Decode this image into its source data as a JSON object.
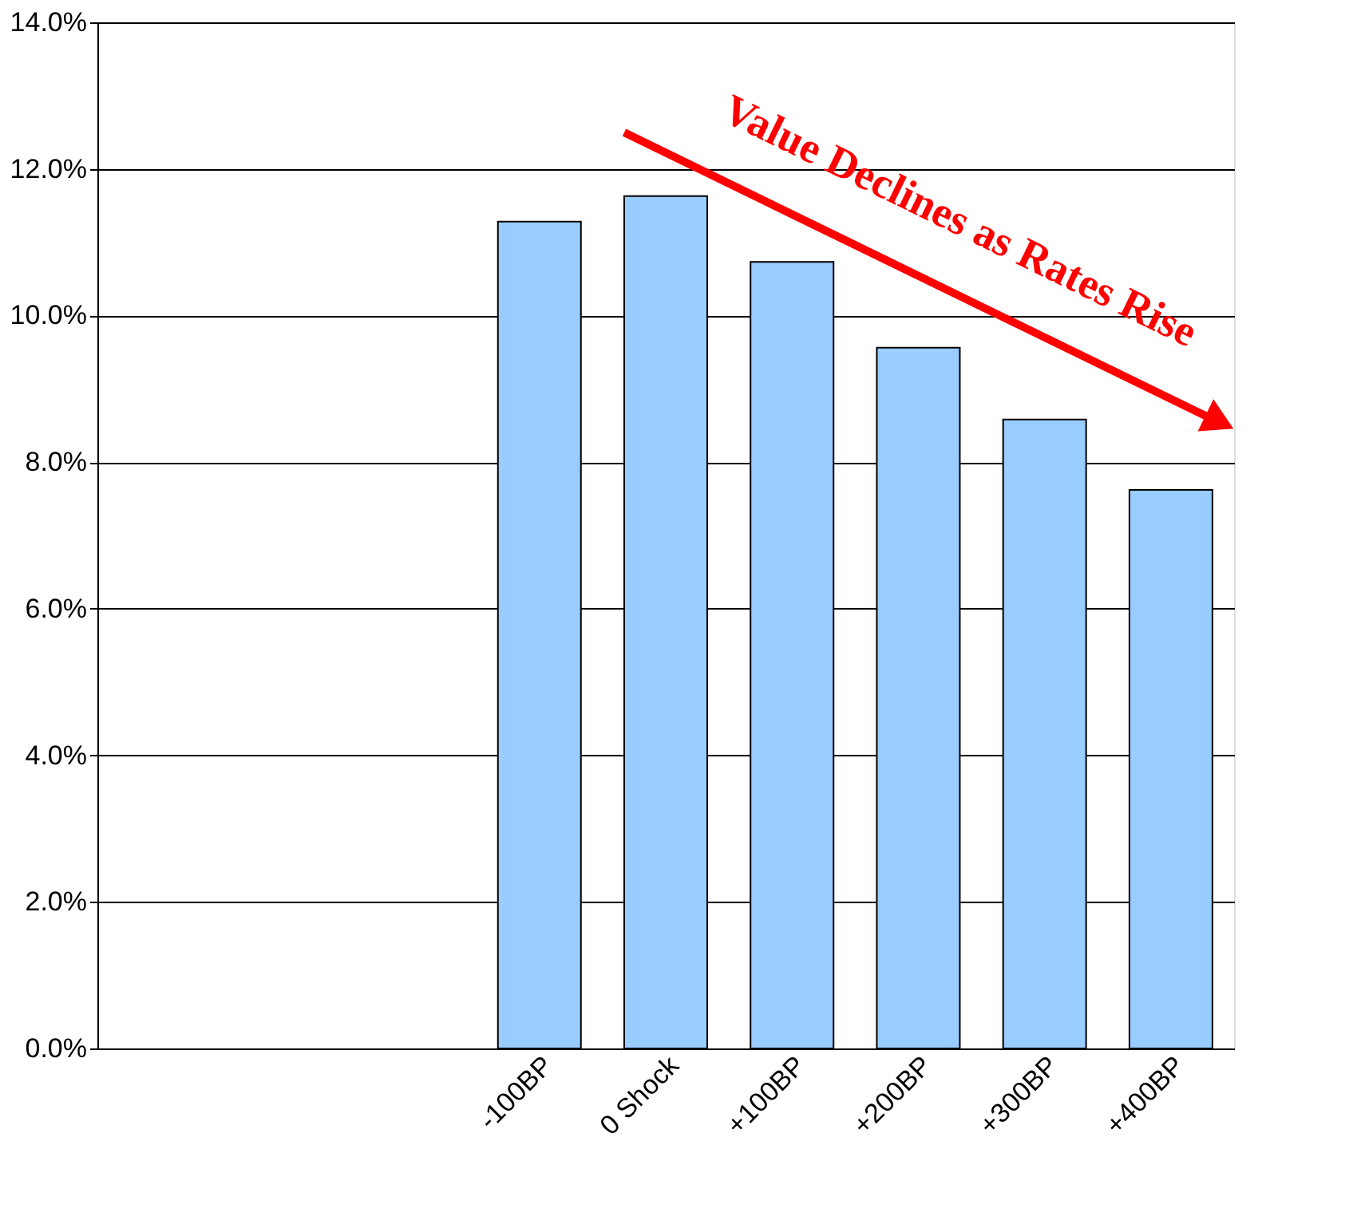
{
  "chart_data": {
    "type": "bar",
    "categories": [
      null,
      null,
      null,
      "-100BP",
      "0 Shock",
      "+100BP",
      "+200BP",
      "+300BP",
      "+400BP"
    ],
    "values": [
      null,
      null,
      null,
      11.28,
      11.63,
      10.73,
      9.56,
      8.58,
      7.62
    ],
    "color": "#99ccff",
    "ylim": [
      0,
      14
    ],
    "yticks": [
      {
        "value": 0,
        "label": "0.0%"
      },
      {
        "value": 2,
        "label": "2.0%"
      },
      {
        "value": 4,
        "label": "4.0%"
      },
      {
        "value": 6,
        "label": "6.0%"
      },
      {
        "value": 8,
        "label": "8.0%"
      },
      {
        "value": 10,
        "label": "10.0%"
      },
      {
        "value": 12,
        "label": "12.0%"
      },
      {
        "value": 14,
        "label": "14.0%"
      }
    ],
    "grid": "y",
    "annotations": [
      "Value Declines as Rates Rise"
    ]
  }
}
